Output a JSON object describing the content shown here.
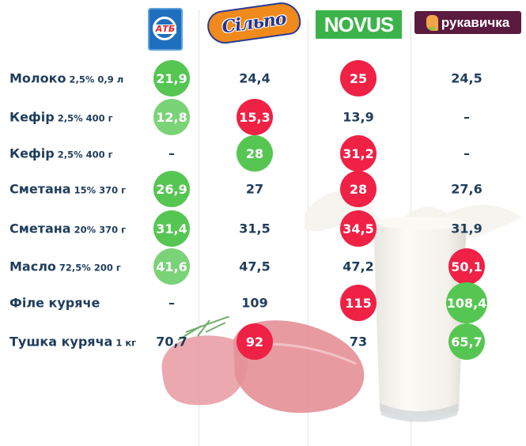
{
  "stores": [
    {
      "id": "atb",
      "name": "АТБ",
      "logo_text": "АТБ",
      "color": "#1f6fbf"
    },
    {
      "id": "silpo",
      "name": "Сільпо",
      "logo_text": "Сільпо",
      "color": "#f08a1c"
    },
    {
      "id": "novus",
      "name": "NOVUS",
      "logo_text": "NOVUS",
      "color": "#3bb34a"
    },
    {
      "id": "rukavychka",
      "name": "Рукавичка",
      "logo_text": "рукавичка",
      "color": "#5b1a3f"
    }
  ],
  "legend_colors": {
    "cheapest": "#56c652",
    "cheap": "#7bd377",
    "most_expensive": "#ef2145",
    "text": "#1f3d5c"
  },
  "rows": [
    {
      "name": "Молоко",
      "detail": "2,5% 0,9 л",
      "cells": [
        {
          "v": "21,9",
          "s": "green"
        },
        {
          "v": "24,4",
          "s": ""
        },
        {
          "v": "25",
          "s": "red"
        },
        {
          "v": "24,5",
          "s": ""
        }
      ]
    },
    {
      "name": "Кефір",
      "detail": "2,5% 400 г",
      "cells": [
        {
          "v": "12,8",
          "s": "lightgreen"
        },
        {
          "v": "15,3",
          "s": "red"
        },
        {
          "v": "13,9",
          "s": ""
        },
        {
          "v": "–",
          "s": ""
        }
      ]
    },
    {
      "name": "Кефір",
      "detail": "2,5% 400 г",
      "cells": [
        {
          "v": "–",
          "s": ""
        },
        {
          "v": "28",
          "s": "green"
        },
        {
          "v": "31,2",
          "s": "red"
        },
        {
          "v": "–",
          "s": ""
        }
      ]
    },
    {
      "name": "Сметана",
      "detail": "15% 370 г",
      "cells": [
        {
          "v": "26,9",
          "s": "green"
        },
        {
          "v": "27",
          "s": ""
        },
        {
          "v": "28",
          "s": "red"
        },
        {
          "v": "27,6",
          "s": ""
        }
      ]
    },
    {
      "name": "Сметана",
      "detail": "20% 370 г",
      "cells": [
        {
          "v": "31,4",
          "s": "green"
        },
        {
          "v": "31,5",
          "s": ""
        },
        {
          "v": "34,5",
          "s": "red"
        },
        {
          "v": "31,9",
          "s": ""
        }
      ]
    },
    {
      "name": "Масло",
      "detail": "72,5% 200 г",
      "cells": [
        {
          "v": "41,6",
          "s": "lightgreen"
        },
        {
          "v": "47,5",
          "s": ""
        },
        {
          "v": "47,2",
          "s": ""
        },
        {
          "v": "50,1",
          "s": "red"
        }
      ]
    },
    {
      "name": "Філе куряче",
      "detail": "",
      "cells": [
        {
          "v": "–",
          "s": ""
        },
        {
          "v": "109",
          "s": ""
        },
        {
          "v": "115",
          "s": "red"
        },
        {
          "v": "108,4",
          "s": "green"
        }
      ]
    },
    {
      "name": "Тушка куряча",
      "detail": "1 кг",
      "cells": [
        {
          "v": "70,7",
          "s": ""
        },
        {
          "v": "92",
          "s": "red"
        },
        {
          "v": "73",
          "s": ""
        },
        {
          "v": "65,7",
          "s": "green"
        }
      ]
    }
  ],
  "chart_data": {
    "type": "table",
    "title": "",
    "columns": [
      "АТБ",
      "Сільпо",
      "NOVUS",
      "Рукавичка"
    ],
    "row_labels": [
      "Молоко 2,5% 0,9 л",
      "Кефір 2,5% 400 г",
      "Кефір 2,5% 400 г",
      "Сметана 15% 370 г",
      "Сметана 20% 370 г",
      "Масло 72,5% 200 г",
      "Філе куряче",
      "Тушка куряча 1 кг"
    ],
    "values": [
      [
        21.9,
        24.4,
        25,
        24.5
      ],
      [
        12.8,
        15.3,
        13.9,
        null
      ],
      [
        null,
        28,
        31.2,
        null
      ],
      [
        26.9,
        27,
        28,
        27.6
      ],
      [
        31.4,
        31.5,
        34.5,
        31.9
      ],
      [
        41.6,
        47.5,
        47.2,
        50.1
      ],
      [
        null,
        109,
        115,
        108.4
      ],
      [
        70.7,
        92,
        73,
        65.7
      ]
    ],
    "highlight_legend": {
      "green": "lowest price",
      "red": "highest price"
    }
  },
  "decor": {
    "meat_image": "raw-meat-steaks-with-rosemary",
    "milk_image": "glass-of-milk-splash"
  }
}
